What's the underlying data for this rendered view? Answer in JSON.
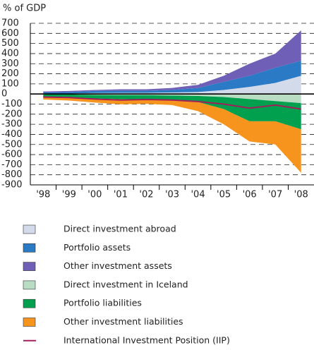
{
  "chart_data": {
    "type": "stacked_area",
    "y_axis_label": "% of GDP",
    "categories": [
      "'98",
      "'99",
      "'00",
      "'01",
      "'02",
      "'03",
      "'04",
      "'05",
      "'06",
      "'07",
      "'08"
    ],
    "ylim": [
      -900,
      700
    ],
    "yticks": [
      -900,
      -800,
      -700,
      -600,
      -500,
      -400,
      -300,
      -200,
      -100,
      0,
      100,
      200,
      300,
      400,
      500,
      600,
      700
    ],
    "grid": true,
    "series": [
      {
        "name": "Direct investment abroad",
        "color": "#d3dbea",
        "stack": "positive",
        "values": [
          5,
          5,
          10,
          12,
          12,
          15,
          20,
          40,
          70,
          110,
          180
        ]
      },
      {
        "name": "Portfolio assets",
        "color": "#2a7ac6",
        "stack": "positive",
        "values": [
          10,
          15,
          20,
          20,
          20,
          25,
          40,
          80,
          110,
          150,
          150
        ]
      },
      {
        "name": "Other investment assets",
        "color": "#6f5fb6",
        "stack": "positive",
        "values": [
          10,
          10,
          10,
          15,
          15,
          20,
          30,
          60,
          120,
          140,
          300
        ]
      },
      {
        "name": "Direct investment in Iceland",
        "color": "#b9ddc3",
        "stack": "negative",
        "values": [
          -5,
          -5,
          -10,
          -12,
          -12,
          -15,
          -20,
          -30,
          -50,
          -70,
          -90
        ]
      },
      {
        "name": "Portfolio liabilities",
        "color": "#00a04e",
        "stack": "negative",
        "values": [
          -20,
          -25,
          -35,
          -40,
          -40,
          -45,
          -60,
          -120,
          -220,
          -200,
          -260
        ]
      },
      {
        "name": "Other investment liabilities",
        "color": "#f7941d",
        "stack": "negative",
        "values": [
          -30,
          -35,
          -40,
          -50,
          -45,
          -50,
          -90,
          -150,
          -200,
          -230,
          -430
        ]
      },
      {
        "name": "International Investment Position (IIP)",
        "color": "#a0205a",
        "stack": "line",
        "values": [
          -30,
          -35,
          -50,
          -60,
          -55,
          -60,
          -75,
          -100,
          -140,
          -110,
          -150
        ]
      }
    ]
  }
}
